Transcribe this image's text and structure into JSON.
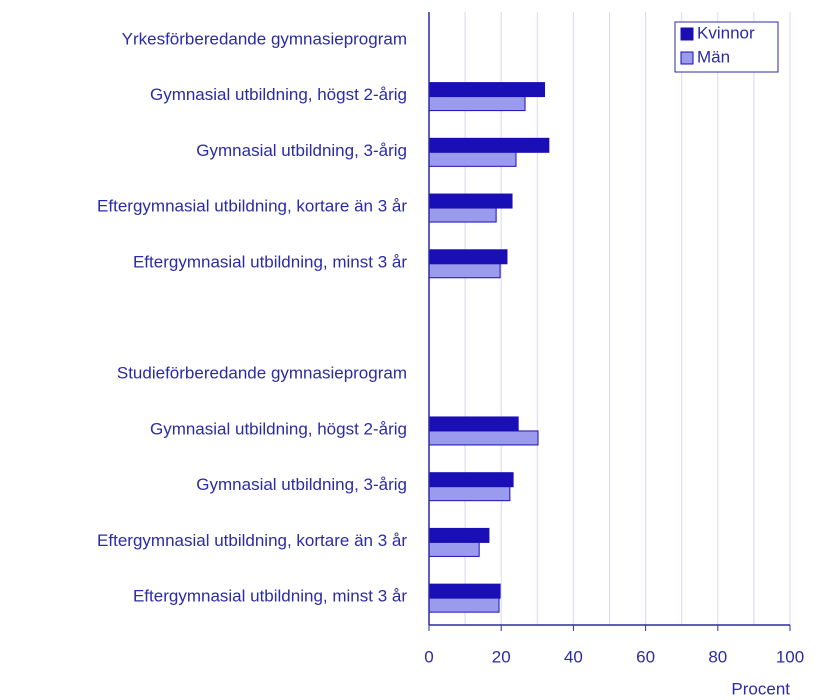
{
  "chart_data": {
    "type": "hbar",
    "categories": [
      "Yrkesförberedande gymnasieprogram",
      "Gymnasial utbildning, högst 2-årig",
      "Gymnasial utbildning, 3-årig",
      "Eftergymnasial utbildning, kortare än 3 år",
      "Eftergymnasial utbildning, minst 3 år",
      null,
      "Studieförberedande gymnasieprogram",
      "Gymnasial utbildning, högst 2-årig",
      "Gymnasial utbildning, 3-årig",
      "Eftergymnasial utbildning, kortare än 3 år",
      "Eftergymnasial utbildning, minst 3 år"
    ],
    "series": [
      {
        "name": "Kvinnor",
        "color": "#1a0fb4",
        "values": [
          null,
          32,
          33.2,
          23,
          21.6,
          null,
          null,
          24.7,
          23.3,
          16.6,
          19.7
        ]
      },
      {
        "name": "Män",
        "color": "#9b9bee",
        "values": [
          null,
          26.6,
          24.1,
          18.6,
          19.7,
          null,
          null,
          30.2,
          22.4,
          13.9,
          19.4
        ]
      }
    ],
    "xlabel": "Procent",
    "xlim": [
      0,
      100
    ],
    "xticks": [
      0,
      20,
      40,
      60,
      80,
      100
    ],
    "minor_xticks": [
      10,
      30,
      50,
      70,
      90
    ],
    "grid": true,
    "legend": "upper right"
  }
}
